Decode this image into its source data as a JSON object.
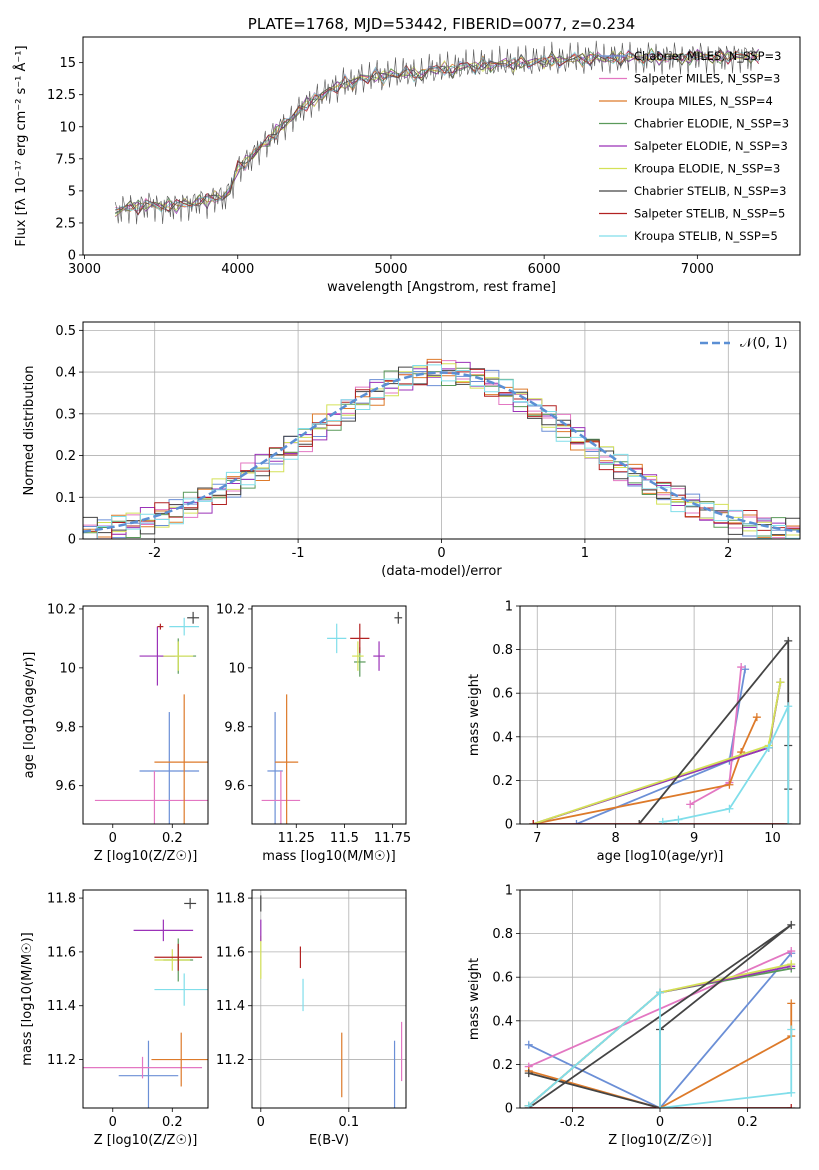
{
  "chart_data": [
    {
      "type": "line",
      "title": "PLATE=1768, MJD=53442, FIBERID=0077, z=0.234",
      "xlabel": "wavelength [Angstrom, rest frame]",
      "ylabel": "Flux [fλ 10⁻¹⁷ erg cm⁻² s⁻¹ Å⁻¹]",
      "xlim": [
        2990,
        7670
      ],
      "ylim": [
        0,
        17.0
      ],
      "xticks": [
        3000,
        4000,
        5000,
        6000,
        7000
      ],
      "yticks": [
        0.0,
        2.5,
        5.0,
        7.5,
        10.0,
        12.5,
        15.0
      ],
      "grid": false,
      "legend_position": "top-right",
      "series": [
        {
          "name": "Chabrier MILES, N_SSP=3",
          "color": "#6b8fd6"
        },
        {
          "name": "Salpeter MILES, N_SSP=3",
          "color": "#e377c2"
        },
        {
          "name": "Kroupa MILES, N_SSP=4",
          "color": "#dd7a2a"
        },
        {
          "name": "Chabrier ELODIE, N_SSP=3",
          "color": "#5a9a5a"
        },
        {
          "name": "Salpeter ELODIE, N_SSP=3",
          "color": "#9b32b8"
        },
        {
          "name": "Kroupa ELODIE, N_SSP=3",
          "color": "#d4e157"
        },
        {
          "name": "Chabrier STELIB, N_SSP=3",
          "color": "#444444"
        },
        {
          "name": "Salpeter STELIB, N_SSP=5",
          "color": "#b22222"
        },
        {
          "name": "Kroupa STELIB, N_SSP=5",
          "color": "#80deea"
        }
      ],
      "spectrum": {
        "x": [
          3200,
          3250,
          3300,
          3350,
          3400,
          3450,
          3500,
          3550,
          3600,
          3650,
          3700,
          3750,
          3800,
          3850,
          3900,
          3950,
          4000,
          4050,
          4100,
          4150,
          4200,
          4250,
          4300,
          4350,
          4400,
          4450,
          4500,
          4550,
          4600,
          4650,
          4700,
          4750,
          4800,
          4850,
          4900,
          4950,
          5000,
          5050,
          5100,
          5150,
          5200,
          5250,
          5300,
          5350,
          5400,
          5450,
          5500,
          5550,
          5600,
          5650,
          5700,
          5750,
          5800,
          5850,
          5900,
          5950,
          6000,
          6050,
          6100,
          6150,
          6200,
          6250,
          6300,
          6350,
          6400,
          6450,
          6500,
          6550,
          6600,
          6650,
          6700,
          6750,
          6800,
          6850,
          6900,
          6950,
          7000,
          7050,
          7100,
          7150,
          7200,
          7250,
          7300,
          7350,
          7400
        ],
        "y": [
          3.3,
          3.6,
          3.8,
          3.7,
          3.9,
          4.0,
          3.7,
          3.9,
          3.8,
          4.1,
          3.9,
          4.3,
          4.2,
          4.6,
          4.4,
          5.1,
          6.8,
          7.2,
          7.8,
          8.5,
          8.9,
          9.6,
          10.2,
          10.6,
          11.3,
          11.8,
          12.1,
          12.4,
          12.9,
          13.1,
          13.5,
          13.3,
          13.9,
          13.7,
          14.1,
          13.8,
          14.2,
          14.0,
          14.3,
          14.1,
          14.0,
          14.5,
          14.4,
          14.6,
          14.3,
          14.7,
          14.8,
          14.6,
          14.9,
          14.7,
          14.9,
          15.0,
          14.8,
          15.1,
          14.9,
          15.2,
          15.0,
          15.3,
          15.1,
          15.2,
          15.4,
          15.2,
          15.3,
          15.5,
          15.2,
          15.4,
          15.3,
          15.5,
          15.4,
          15.2,
          15.6,
          15.3,
          15.4,
          15.5,
          15.3,
          15.4,
          15.6,
          15.5,
          15.3,
          15.5,
          15.4,
          15.6,
          15.5,
          15.4,
          15.5
        ]
      }
    },
    {
      "type": "histogram",
      "xlabel": "(data-model)/error",
      "ylabel": "Normed distribution",
      "xlim": [
        -2.5,
        2.5
      ],
      "ylim": [
        0,
        0.52
      ],
      "xticks": [
        -2,
        -1,
        0,
        1,
        2
      ],
      "yticks": [
        0.0,
        0.1,
        0.2,
        0.3,
        0.4,
        0.5
      ],
      "grid": true,
      "legend_position": "top-right",
      "reference_curve": {
        "name": "𝒩(0, 1)",
        "style": "dashed",
        "color": "#5b8fd4"
      },
      "bin_edges": [
        -2.5,
        -2.4,
        -2.3,
        -2.2,
        -2.1,
        -2.0,
        -1.9,
        -1.8,
        -1.7,
        -1.6,
        -1.5,
        -1.4,
        -1.3,
        -1.2,
        -1.1,
        -1.0,
        -0.9,
        -0.8,
        -0.7,
        -0.6,
        -0.5,
        -0.4,
        -0.3,
        -0.2,
        -0.1,
        0.0,
        0.1,
        0.2,
        0.3,
        0.4,
        0.5,
        0.6,
        0.7,
        0.8,
        0.9,
        1.0,
        1.1,
        1.2,
        1.3,
        1.4,
        1.5,
        1.6,
        1.7,
        1.8,
        1.9,
        2.0,
        2.1,
        2.2,
        2.3,
        2.4,
        2.5
      ],
      "series_values": [
        0.018,
        0.022,
        0.028,
        0.036,
        0.044,
        0.054,
        0.066,
        0.08,
        0.096,
        0.113,
        0.13,
        0.15,
        0.17,
        0.194,
        0.218,
        0.242,
        0.266,
        0.29,
        0.312,
        0.334,
        0.354,
        0.37,
        0.384,
        0.394,
        0.4,
        0.4,
        0.394,
        0.384,
        0.37,
        0.354,
        0.334,
        0.312,
        0.29,
        0.266,
        0.242,
        0.218,
        0.194,
        0.17,
        0.15,
        0.13,
        0.113,
        0.096,
        0.08,
        0.066,
        0.054,
        0.044,
        0.036,
        0.028,
        0.022,
        0.018
      ]
    },
    {
      "type": "scatter",
      "xlabel": "Z [log10(Z/Z☉)]",
      "ylabel": "age  [log10(age/yr)]",
      "xlim": [
        -0.1,
        0.32
      ],
      "ylim": [
        9.47,
        10.21
      ],
      "xticks": [
        0.0,
        0.2
      ],
      "yticks": [
        9.6,
        9.8,
        10.0,
        10.2
      ],
      "points": [
        {
          "x": 0.19,
          "y": 9.65,
          "xerr": 0.1,
          "yerr": 0.2,
          "color": "#6b8fd6"
        },
        {
          "x": 0.14,
          "y": 9.55,
          "xerr": 0.2,
          "yerr": 0.1,
          "color": "#e377c2"
        },
        {
          "x": 0.24,
          "y": 9.68,
          "xerr": 0.1,
          "yerr": 0.23,
          "color": "#dd7a2a"
        },
        {
          "x": 0.22,
          "y": 10.04,
          "xerr": 0.06,
          "yerr": 0.06,
          "color": "#5a9a5a"
        },
        {
          "x": 0.15,
          "y": 10.04,
          "xerr": 0.06,
          "yerr": 0.1,
          "color": "#9b32b8"
        },
        {
          "x": 0.22,
          "y": 10.04,
          "xerr": 0.05,
          "yerr": 0.05,
          "color": "#d4e157"
        },
        {
          "x": 0.27,
          "y": 10.17,
          "xerr": 0.02,
          "yerr": 0.02,
          "color": "#444444"
        },
        {
          "x": 0.16,
          "y": 10.14,
          "xerr": 0.01,
          "yerr": 0.01,
          "color": "#b22222"
        },
        {
          "x": 0.24,
          "y": 10.14,
          "xerr": 0.05,
          "yerr": 0.03,
          "color": "#80deea"
        }
      ]
    },
    {
      "type": "scatter",
      "xlabel": "mass [log10(M/M☉)]",
      "ylabel": "",
      "xlim": [
        11.02,
        11.82
      ],
      "ylim": [
        9.47,
        10.21
      ],
      "xticks": [
        11.25,
        11.5,
        11.75
      ],
      "yticks": [
        9.6,
        9.8,
        10.0,
        10.2
      ],
      "points": [
        {
          "x": 11.14,
          "y": 9.65,
          "xerr": 0.04,
          "yerr": 0.2,
          "color": "#6b8fd6"
        },
        {
          "x": 11.17,
          "y": 9.55,
          "xerr": 0.1,
          "yerr": 0.1,
          "color": "#e377c2"
        },
        {
          "x": 11.2,
          "y": 9.68,
          "xerr": 0.06,
          "yerr": 0.23,
          "color": "#dd7a2a"
        },
        {
          "x": 11.58,
          "y": 10.02,
          "xerr": 0.03,
          "yerr": 0.05,
          "color": "#5a9a5a"
        },
        {
          "x": 11.68,
          "y": 10.04,
          "xerr": 0.03,
          "yerr": 0.05,
          "color": "#9b32b8"
        },
        {
          "x": 11.57,
          "y": 10.04,
          "xerr": 0.03,
          "yerr": 0.05,
          "color": "#d4e157"
        },
        {
          "x": 11.78,
          "y": 10.17,
          "xerr": 0.02,
          "yerr": 0.02,
          "color": "#444444"
        },
        {
          "x": 11.58,
          "y": 10.1,
          "xerr": 0.05,
          "yerr": 0.05,
          "color": "#b22222"
        },
        {
          "x": 11.46,
          "y": 10.1,
          "xerr": 0.05,
          "yerr": 0.05,
          "color": "#80deea"
        }
      ]
    },
    {
      "type": "line",
      "xlabel": "age  [log10(age/yr)]",
      "ylabel": "mass weight",
      "xlim": [
        6.78,
        10.35
      ],
      "ylim": [
        0,
        1.0
      ],
      "xticks": [
        7,
        8,
        9,
        10
      ],
      "yticks": [
        0.0,
        0.2,
        0.4,
        0.6,
        0.8,
        1.0
      ],
      "grid": true,
      "series": [
        {
          "color": "#6b8fd6",
          "x": [
            7.5,
            9.45,
            9.65
          ],
          "y": [
            0.0,
            0.29,
            0.71
          ]
        },
        {
          "color": "#e377c2",
          "x": [
            8.95,
            9.45,
            9.6
          ],
          "y": [
            0.09,
            0.19,
            0.72
          ]
        },
        {
          "color": "#dd7a2a",
          "x": [
            6.95,
            9.45,
            9.6,
            9.8
          ],
          "y": [
            0.0,
            0.18,
            0.33,
            0.49
          ]
        },
        {
          "color": "#5a9a5a",
          "x": [
            6.95,
            9.95,
            10.1
          ],
          "y": [
            0.0,
            0.35,
            0.65
          ]
        },
        {
          "color": "#9b32b8",
          "x": [
            6.95,
            9.95,
            10.1
          ],
          "y": [
            0.0,
            0.35,
            0.65
          ]
        },
        {
          "color": "#d4e157",
          "x": [
            6.95,
            9.95,
            10.1
          ],
          "y": [
            0.0,
            0.36,
            0.65
          ]
        },
        {
          "color": "#444444",
          "x": [
            8.3,
            10.2,
            10.2,
            10.2
          ],
          "y": [
            0.0,
            0.84,
            0.36,
            0.16
          ]
        },
        {
          "color": "#b22222",
          "x": [
            6.95,
            10.2
          ],
          "y": [
            0.0,
            0.0
          ]
        },
        {
          "color": "#80deea",
          "x": [
            8.6,
            8.8,
            9.45,
            9.95,
            10.2,
            10.2
          ],
          "y": [
            0.01,
            0.02,
            0.07,
            0.35,
            0.54,
            0.0
          ]
        }
      ]
    },
    {
      "type": "scatter",
      "xlabel": "Z [log10(Z/Z☉)]",
      "ylabel": "mass [log10(M/M☉)]",
      "xlim": [
        -0.1,
        0.32
      ],
      "ylim": [
        11.02,
        11.83
      ],
      "xticks": [
        0.0,
        0.2
      ],
      "yticks": [
        11.2,
        11.4,
        11.6,
        11.8
      ],
      "points": [
        {
          "x": 0.12,
          "y": 11.14,
          "xerr": 0.1,
          "yerr": 0.13,
          "color": "#6b8fd6"
        },
        {
          "x": 0.1,
          "y": 11.17,
          "xerr": 0.2,
          "yerr": 0.04,
          "color": "#e377c2"
        },
        {
          "x": 0.23,
          "y": 11.2,
          "xerr": 0.1,
          "yerr": 0.1,
          "color": "#dd7a2a"
        },
        {
          "x": 0.22,
          "y": 11.57,
          "xerr": 0.05,
          "yerr": 0.08,
          "color": "#5a9a5a"
        },
        {
          "x": 0.17,
          "y": 11.68,
          "xerr": 0.1,
          "yerr": 0.04,
          "color": "#9b32b8"
        },
        {
          "x": 0.2,
          "y": 11.57,
          "xerr": 0.06,
          "yerr": 0.04,
          "color": "#d4e157"
        },
        {
          "x": 0.26,
          "y": 11.78,
          "xerr": 0.02,
          "yerr": 0.02,
          "color": "#444444"
        },
        {
          "x": 0.22,
          "y": 11.58,
          "xerr": 0.08,
          "yerr": 0.05,
          "color": "#b22222"
        },
        {
          "x": 0.24,
          "y": 11.46,
          "xerr": 0.1,
          "yerr": 0.06,
          "color": "#80deea"
        }
      ]
    },
    {
      "type": "scatter",
      "xlabel": "E(B-V)",
      "ylabel": "",
      "xlim": [
        -0.01,
        0.165
      ],
      "ylim": [
        11.02,
        11.83
      ],
      "xticks": [
        0.0,
        0.1
      ],
      "yticks": [
        11.2,
        11.4,
        11.6,
        11.8
      ],
      "grid": true,
      "points": [
        {
          "x": 0.152,
          "y": 11.14,
          "yerr": 0.13,
          "color": "#6b8fd6"
        },
        {
          "x": 0.16,
          "y": 11.23,
          "yerr": 0.11,
          "color": "#e377c2"
        },
        {
          "x": 0.092,
          "y": 11.18,
          "yerr": 0.12,
          "color": "#dd7a2a"
        },
        {
          "x": 0.0,
          "y": 11.58,
          "yerr": 0.08,
          "color": "#d4e157"
        },
        {
          "x": 0.0,
          "y": 11.68,
          "yerr": 0.04,
          "color": "#9b32b8"
        },
        {
          "x": 0.0,
          "y": 11.78,
          "yerr": 0.03,
          "color": "#444444"
        },
        {
          "x": 0.045,
          "y": 11.58,
          "yerr": 0.04,
          "color": "#b22222"
        },
        {
          "x": 0.048,
          "y": 11.44,
          "yerr": 0.06,
          "color": "#80deea"
        }
      ]
    },
    {
      "type": "line",
      "xlabel": "Z [log10(Z/Z☉)]",
      "ylabel": "mass weight",
      "xlim": [
        -0.32,
        0.32
      ],
      "ylim": [
        0,
        1.0
      ],
      "xticks": [
        -0.2,
        0.0,
        0.2
      ],
      "yticks": [
        0.0,
        0.2,
        0.4,
        0.6,
        0.8,
        1.0
      ],
      "grid": true,
      "series": [
        {
          "color": "#6b8fd6",
          "x": [
            -0.3,
            0.0,
            0.3
          ],
          "y": [
            0.29,
            0.0,
            0.71
          ]
        },
        {
          "color": "#e377c2",
          "x": [
            -0.3,
            0.3
          ],
          "y": [
            0.19,
            0.72
          ]
        },
        {
          "color": "#dd7a2a",
          "x": [
            -0.3,
            0.0,
            0.3,
            0.3
          ],
          "y": [
            0.17,
            0.0,
            0.33,
            0.48
          ]
        },
        {
          "color": "#5a9a5a",
          "x": [
            -0.3,
            0.0,
            0.3
          ],
          "y": [
            0.01,
            0.53,
            0.64
          ]
        },
        {
          "color": "#9b32b8",
          "x": [
            -0.3,
            0.0,
            0.3
          ],
          "y": [
            0.01,
            0.53,
            0.65
          ]
        },
        {
          "color": "#d4e157",
          "x": [
            -0.3,
            0.0,
            0.3
          ],
          "y": [
            0.01,
            0.53,
            0.66
          ]
        },
        {
          "color": "#444444",
          "x": [
            -0.3,
            0.3,
            0.0,
            0.0,
            -0.3
          ],
          "y": [
            0.0,
            0.84,
            0.36,
            0.0,
            0.16
          ]
        },
        {
          "color": "#b22222",
          "x": [
            -0.3,
            0.3
          ],
          "y": [
            0.0,
            0.0
          ]
        },
        {
          "color": "#80deea",
          "x": [
            -0.3,
            0.0,
            0.0,
            0.3,
            0.3
          ],
          "y": [
            0.01,
            0.53,
            0.0,
            0.07,
            0.36
          ]
        }
      ]
    }
  ]
}
